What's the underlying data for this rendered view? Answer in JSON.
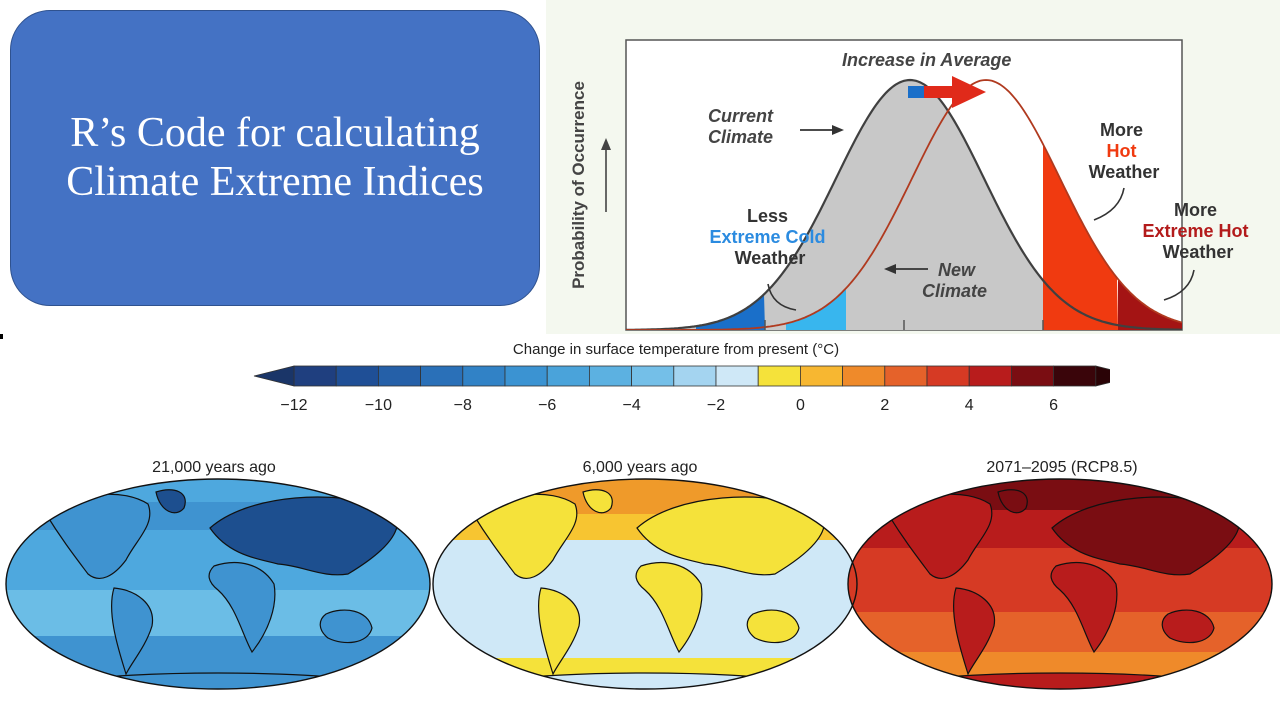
{
  "slide": {
    "title_lines": [
      "R’s Code for calculating",
      "Climate Extreme Indices"
    ],
    "colors": {
      "title_box": "#4472c4",
      "title_text": "#ffffff"
    }
  },
  "distribution_figure": {
    "y_axis_label": "Probability of Occurrence",
    "shift_label": "Increase in Average",
    "current_climate_label": [
      "Current",
      "Climate"
    ],
    "new_climate_label": [
      "New",
      "Climate"
    ],
    "less_cold_label": [
      "Less",
      "Extreme Cold",
      "Weather"
    ],
    "more_hot_label": [
      "More",
      "Hot",
      "Weather"
    ],
    "more_extreme_hot_label": [
      "More",
      "Extreme Hot",
      "Weather"
    ],
    "colors": {
      "current_curve": "#404040",
      "new_curve": "#b03a1f",
      "fill": "#c8c8c8",
      "cold": "#1a6fc9",
      "less_cold": "#38b6ee",
      "hot": "#f03a10",
      "extreme_hot": "#a41414",
      "highlight": "#e02a1a"
    }
  },
  "temperature_scale": {
    "title": "Change in surface temperature from present (°C)",
    "tick_labels": [
      "−12",
      "−10",
      "−8",
      "−6",
      "−4",
      "−2",
      "0",
      "2",
      "4",
      "6"
    ],
    "colors": [
      "#1f3f7f",
      "#1f4f96",
      "#2560a8",
      "#2a70b8",
      "#3182c6",
      "#3b93d2",
      "#4aa3da",
      "#5cb1e1",
      "#74bfe8",
      "#a4d4f0",
      "#cfe8f7",
      "#f5e23a",
      "#f7b731",
      "#ef8a2a",
      "#e5622a",
      "#d63a24",
      "#b81c1c",
      "#7a0d12",
      "#3a050a"
    ]
  },
  "maps": [
    {
      "title": "21,000 years ago",
      "palette": [
        "#4ea8de",
        "#3f93d0",
        "#2c6fb1",
        "#1d4f8f",
        "#6bbde6"
      ]
    },
    {
      "title": "6,000 years ago",
      "palette": [
        "#cfe8f7",
        "#f5e23a",
        "#f7c531",
        "#ef9a2a",
        "#bfe0f4"
      ]
    },
    {
      "title": "2071–2095 (RCP8.5)",
      "palette": [
        "#e5622a",
        "#d63a24",
        "#b81c1c",
        "#7a0d12",
        "#ef8a2a"
      ]
    }
  ]
}
